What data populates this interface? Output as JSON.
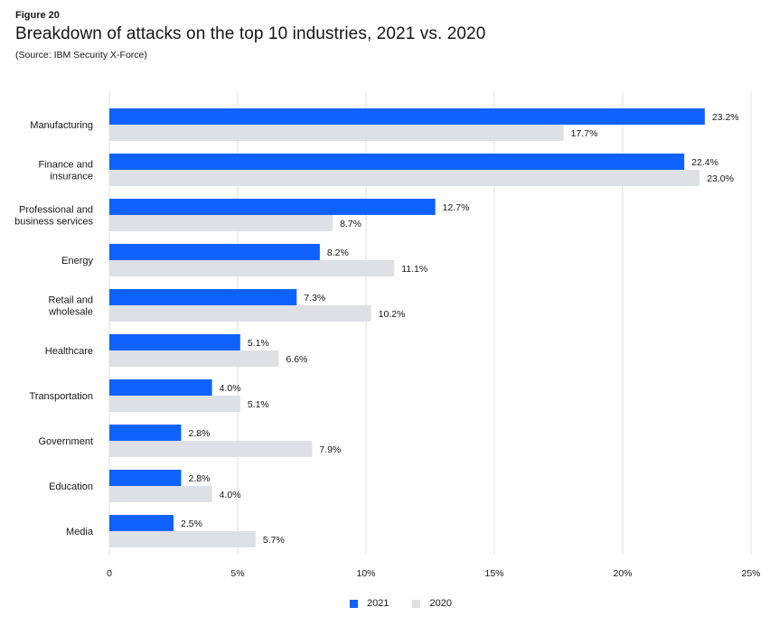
{
  "figure_label": "Figure 20",
  "colors": {
    "2021": "#0f62fe",
    "2020": "#dde1e6",
    "grid": "#e0e0e0"
  },
  "chart_data": {
    "type": "bar",
    "orientation": "horizontal",
    "title": "Breakdown of attacks on the top 10 industries, 2021 vs. 2020",
    "subtitle": "(Source: IBM Security X-Force)",
    "categories": [
      [
        "Manufacturing"
      ],
      [
        "Finance and",
        "insurance"
      ],
      [
        "Professional and",
        "business services"
      ],
      [
        "Energy"
      ],
      [
        "Retail and",
        "wholesale"
      ],
      [
        "Healthcare"
      ],
      [
        "Transportation"
      ],
      [
        "Government"
      ],
      [
        "Education"
      ],
      [
        "Media"
      ]
    ],
    "series": [
      {
        "name": "2021",
        "values": [
          23.2,
          22.4,
          12.7,
          8.2,
          7.3,
          5.1,
          4.0,
          2.8,
          2.8,
          2.5
        ],
        "labels": [
          "23.2%",
          "22.4%",
          "12.7%",
          "8.2%",
          "7.3%",
          "5.1%",
          "4.0%",
          "2.8%",
          "2.8%",
          "2.5%"
        ]
      },
      {
        "name": "2020",
        "values": [
          17.7,
          23.0,
          8.7,
          11.1,
          10.2,
          6.6,
          5.1,
          7.9,
          4.0,
          5.7
        ],
        "labels": [
          "17.7%",
          "23.0%",
          "8.7%",
          "11.1%",
          "10.2%",
          "6.6%",
          "5.1%",
          "7.9%",
          "4.0%",
          "5.7%"
        ]
      }
    ],
    "xlim": [
      0,
      25
    ],
    "xticks": [
      0,
      5,
      10,
      15,
      20,
      25
    ],
    "xtick_labels": [
      "0",
      "5%",
      "10%",
      "15%",
      "20%",
      "25%"
    ],
    "grid": true,
    "legend_position": "bottom-center"
  }
}
